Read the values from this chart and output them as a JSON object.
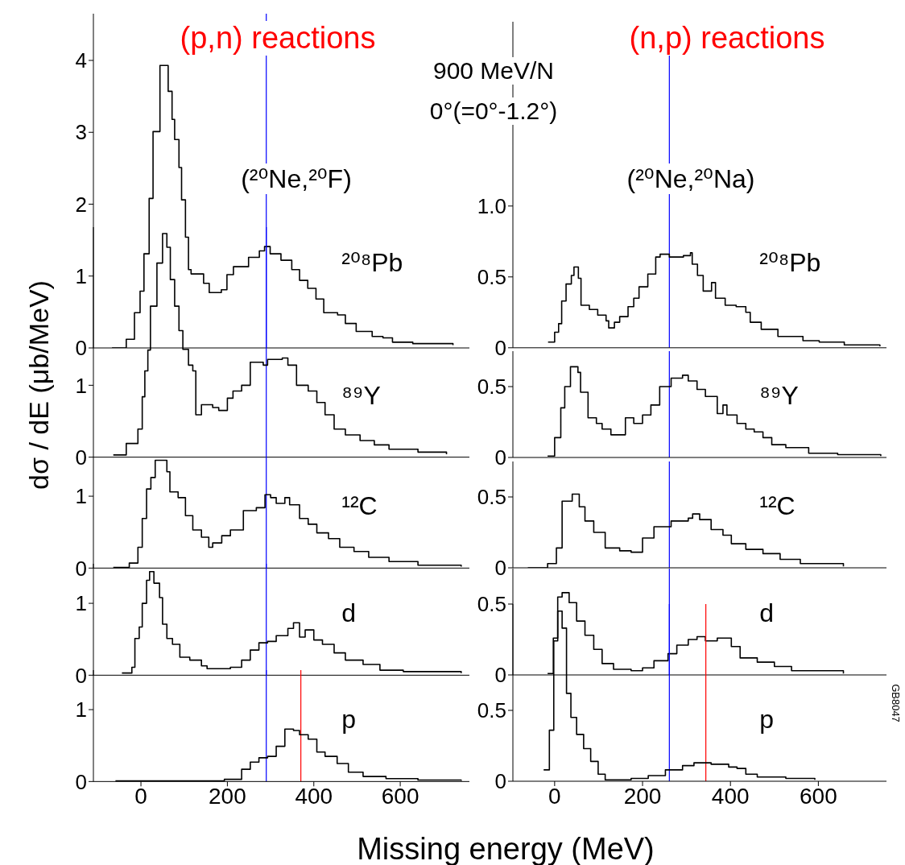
{
  "chart_data": [
    {
      "type": "step",
      "title": "(p,n) reactions",
      "subtitle": "(²⁰Ne,²⁰F)",
      "ylabel": "dσ / dE (μb/MeV)",
      "xlim": [
        -110,
        760
      ],
      "xticks": [
        0,
        200,
        400,
        600
      ],
      "ylim": [
        0,
        4.65
      ],
      "yticks": [
        0,
        1,
        2,
        3,
        4
      ],
      "tick_labels": "y",
      "x": [
        -67,
        -34,
        -15,
        -2,
        7,
        19,
        28,
        44,
        63,
        72,
        78,
        88,
        94,
        103,
        110,
        116,
        145,
        158,
        186,
        199,
        214,
        249,
        274,
        286,
        299,
        324,
        349,
        367,
        386,
        405,
        423,
        455,
        473,
        498,
        523,
        535,
        560,
        582,
        629,
        722
      ],
      "series": [
        {
          "name": "²⁰⁸Pb",
          "color": "#000000",
          "values": [
            0,
            0.12,
            0.49,
            0.79,
            1.31,
            2.08,
            3.01,
            3.93,
            3.57,
            3.18,
            2.9,
            2.51,
            2.06,
            1.54,
            1.09,
            1.03,
            0.9,
            0.77,
            0.81,
            1.02,
            1.13,
            1.26,
            1.35,
            1.41,
            1.31,
            1.22,
            1.09,
            0.94,
            0.83,
            0.68,
            0.49,
            0.46,
            0.34,
            0.23,
            0.23,
            0.16,
            0.14,
            0.08,
            0.06,
            0.04
          ]
        }
      ],
      "ref_lines": [
        {
          "axis": "x",
          "value": 290,
          "color": "#0000ff"
        }
      ]
    },
    {
      "type": "step",
      "title": "(n,p) reactions",
      "subtitle": "(²⁰Ne,²⁰Na)",
      "annotations": [
        "900 MeV/N",
        "0°(=0°-1.2°)"
      ],
      "xlim": [
        -95,
        755
      ],
      "xticks": [
        0,
        200,
        400,
        600
      ],
      "ylim": [
        0,
        2.3
      ],
      "yticks": [
        0,
        0.5,
        {
          "value": 1,
          "label": "1.0"
        }
      ],
      "tick_labels": "y",
      "x": [
        -15,
        0,
        9,
        16,
        26,
        38,
        44,
        54,
        60,
        79,
        98,
        117,
        123,
        136,
        148,
        167,
        180,
        192,
        212,
        230,
        240,
        261,
        293,
        309,
        313,
        325,
        338,
        357,
        366,
        388,
        413,
        435,
        445,
        470,
        508,
        565,
        602,
        659,
        740
      ],
      "series": [
        {
          "name": "²⁰⁸Pb",
          "color": "#000000",
          "values": [
            0.04,
            0.11,
            0.17,
            0.33,
            0.45,
            0.51,
            0.57,
            0.49,
            0.3,
            0.27,
            0.23,
            0.19,
            0.14,
            0.18,
            0.22,
            0.29,
            0.35,
            0.43,
            0.52,
            0.64,
            0.66,
            0.64,
            0.65,
            0.67,
            0.59,
            0.51,
            0.4,
            0.46,
            0.35,
            0.3,
            0.29,
            0.25,
            0.18,
            0.13,
            0.08,
            0.05,
            0.04,
            0.02,
            0.01
          ]
        }
      ],
      "ref_lines": [
        {
          "axis": "x",
          "value": 261,
          "color": "#0000ff"
        }
      ]
    },
    {
      "type": "step",
      "xlim": [
        -110,
        760
      ],
      "xticks": [
        0,
        200,
        400,
        600
      ],
      "ylim": [
        0,
        3.2
      ],
      "yticks": [
        0,
        1
      ],
      "tick_labels": "y",
      "x": [
        -64,
        -34,
        -7,
        3,
        9,
        16,
        22,
        37,
        50,
        60,
        68,
        78,
        88,
        97,
        110,
        120,
        127,
        140,
        166,
        180,
        200,
        213,
        233,
        253,
        283,
        293,
        327,
        340,
        360,
        387,
        407,
        426,
        447,
        473,
        507,
        540,
        574,
        641,
        707
      ],
      "series": [
        {
          "name": "⁸⁹Y",
          "color": "#000000",
          "values": [
            0.03,
            0.19,
            0.39,
            0.84,
            1.2,
            1.49,
            2.1,
            2.7,
            3.11,
            2.92,
            2.47,
            2.1,
            1.76,
            1.5,
            1.28,
            1.2,
            0.59,
            0.73,
            0.69,
            0.65,
            0.82,
            0.92,
            1.0,
            1.32,
            1.28,
            1.36,
            1.38,
            1.28,
            1.0,
            0.92,
            0.76,
            0.59,
            0.39,
            0.31,
            0.23,
            0.17,
            0.11,
            0.07,
            0.04
          ]
        }
      ],
      "ref_lines": [
        {
          "axis": "x",
          "value": 290,
          "color": "#0000ff"
        }
      ]
    },
    {
      "type": "step",
      "xlim": [
        -95,
        755
      ],
      "xticks": [
        0,
        200,
        400,
        600
      ],
      "ylim": [
        0,
        0.75
      ],
      "yticks": [
        0,
        0.5
      ],
      "tick_labels": "y",
      "x": [
        -16,
        0,
        14,
        23,
        36,
        53,
        59,
        76,
        95,
        108,
        128,
        161,
        180,
        200,
        219,
        239,
        265,
        291,
        304,
        324,
        343,
        370,
        383,
        392,
        415,
        435,
        454,
        474,
        494,
        526,
        578,
        644,
        742
      ],
      "series": [
        {
          "name": "⁸⁹Y",
          "color": "#000000",
          "values": [
            0.01,
            0.14,
            0.35,
            0.5,
            0.64,
            0.6,
            0.46,
            0.28,
            0.24,
            0.2,
            0.16,
            0.28,
            0.24,
            0.3,
            0.37,
            0.5,
            0.56,
            0.58,
            0.54,
            0.48,
            0.43,
            0.31,
            0.37,
            0.3,
            0.24,
            0.2,
            0.18,
            0.14,
            0.09,
            0.07,
            0.03,
            0.02,
            0.01
          ]
        }
      ],
      "ref_lines": [
        {
          "axis": "x",
          "value": 261,
          "color": "#0000ff"
        }
      ]
    },
    {
      "type": "step",
      "xlim": [
        -110,
        760
      ],
      "xticks": [
        0,
        200,
        400,
        600
      ],
      "ylim": [
        0,
        1.55
      ],
      "yticks": [
        0,
        1
      ],
      "tick_labels": "y",
      "x": [
        -64,
        -27,
        -7,
        3,
        13,
        23,
        33,
        47,
        60,
        67,
        86,
        103,
        120,
        140,
        157,
        166,
        187,
        207,
        237,
        267,
        287,
        300,
        313,
        333,
        344,
        367,
        387,
        407,
        434,
        460,
        493,
        527,
        574,
        641,
        741
      ],
      "series": [
        {
          "name": "¹²C",
          "color": "#000000",
          "values": [
            0.01,
            0.07,
            0.29,
            0.69,
            1.1,
            1.26,
            1.5,
            1.5,
            1.34,
            1.06,
            0.98,
            0.73,
            0.53,
            0.43,
            0.29,
            0.35,
            0.45,
            0.53,
            0.8,
            0.84,
            1.02,
            0.98,
            0.9,
            0.98,
            0.88,
            0.69,
            0.61,
            0.49,
            0.41,
            0.29,
            0.23,
            0.15,
            0.09,
            0.04,
            0.02
          ]
        }
      ],
      "ref_lines": [
        {
          "axis": "x",
          "value": 290,
          "color": "#0000ff"
        }
      ]
    },
    {
      "type": "step",
      "xlim": [
        -95,
        755
      ],
      "xticks": [
        0,
        200,
        400,
        600
      ],
      "ylim": [
        0,
        0.75
      ],
      "yticks": [
        0,
        0.5
      ],
      "tick_labels": "y",
      "x": [
        -61,
        -16,
        4,
        17,
        40,
        56,
        69,
        89,
        115,
        148,
        174,
        200,
        226,
        265,
        304,
        314,
        330,
        356,
        383,
        402,
        435,
        474,
        513,
        559,
        657
      ],
      "series": [
        {
          "name": "¹²C",
          "color": "#000000",
          "values": [
            0,
            0.03,
            0.14,
            0.47,
            0.52,
            0.43,
            0.33,
            0.25,
            0.14,
            0.12,
            0.11,
            0.21,
            0.29,
            0.33,
            0.35,
            0.38,
            0.34,
            0.27,
            0.23,
            0.17,
            0.13,
            0.1,
            0.06,
            0.03,
            0.01
          ]
        }
      ],
      "ref_lines": [
        {
          "axis": "x",
          "value": 261,
          "color": "#0000ff"
        }
      ]
    },
    {
      "type": "step",
      "xlim": [
        -110,
        760
      ],
      "xticks": [
        0,
        200,
        400,
        600
      ],
      "ylim": [
        0,
        1.55
      ],
      "yticks": [
        0,
        1
      ],
      "tick_labels": "y",
      "x": [
        -44,
        -21,
        -14,
        -4,
        3,
        13,
        20,
        30,
        43,
        50,
        60,
        73,
        90,
        113,
        140,
        153,
        207,
        233,
        253,
        273,
        293,
        313,
        340,
        353,
        367,
        380,
        400,
        420,
        447,
        473,
        514,
        553,
        607,
        741
      ],
      "series": [
        {
          "name": "d",
          "color": "#000000",
          "values": [
            0.03,
            0.11,
            0.51,
            0.67,
            1.0,
            1.32,
            1.44,
            1.28,
            1.08,
            0.71,
            0.51,
            0.43,
            0.25,
            0.21,
            0.13,
            0.09,
            0.11,
            0.21,
            0.35,
            0.45,
            0.47,
            0.55,
            0.65,
            0.73,
            0.53,
            0.63,
            0.49,
            0.43,
            0.31,
            0.21,
            0.15,
            0.07,
            0.05,
            0.03
          ]
        }
      ],
      "ref_lines": [
        {
          "axis": "x",
          "value": 290,
          "color": "#0000ff"
        }
      ]
    },
    {
      "type": "step",
      "xlim": [
        -95,
        755
      ],
      "xticks": [
        0,
        200,
        400,
        600
      ],
      "ylim": [
        0,
        0.75
      ],
      "yticks": [
        0,
        0.5
      ],
      "tick_labels": "y",
      "x": [
        -16,
        -3,
        7,
        17,
        33,
        50,
        69,
        89,
        108,
        134,
        174,
        200,
        226,
        258,
        278,
        304,
        324,
        343,
        370,
        389,
        402,
        422,
        461,
        500,
        539,
        657
      ],
      "series": [
        {
          "name": "d",
          "color": "#000000",
          "values": [
            0.01,
            0.26,
            0.55,
            0.58,
            0.51,
            0.38,
            0.28,
            0.18,
            0.08,
            0.04,
            0.03,
            0.05,
            0.1,
            0.15,
            0.21,
            0.25,
            0.27,
            0.24,
            0.26,
            0.26,
            0.2,
            0.12,
            0.09,
            0.06,
            0.03,
            0.01
          ]
        }
      ],
      "ref_lines": [
        {
          "axis": "x",
          "value": 261,
          "color": "#0000ff"
        }
      ]
    },
    {
      "type": "step",
      "xlabel": "Missing energy (MeV)",
      "xlim": [
        -110,
        760
      ],
      "xticks": [
        0,
        200,
        400,
        600
      ],
      "ylim": [
        0,
        1.55
      ],
      "yticks": [
        0,
        1
      ],
      "x": [
        -59,
        140,
        193,
        233,
        253,
        273,
        293,
        313,
        333,
        353,
        367,
        387,
        407,
        426,
        454,
        480,
        514,
        567,
        641,
        741
      ],
      "series": [
        {
          "name": "p",
          "color": "#000000",
          "values": [
            0.01,
            0.01,
            0.03,
            0.17,
            0.27,
            0.33,
            0.35,
            0.49,
            0.73,
            0.71,
            0.65,
            0.59,
            0.41,
            0.35,
            0.25,
            0.13,
            0.07,
            0.04,
            0.02,
            0.01
          ]
        }
      ],
      "ref_lines": [
        {
          "axis": "x",
          "value": 290,
          "color": "#0000ff"
        },
        {
          "axis": "x",
          "value": 370,
          "color": "#ff0000"
        }
      ]
    },
    {
      "type": "step",
      "annotations": [
        "GB8047"
      ],
      "xlim": [
        -95,
        755
      ],
      "xticks": [
        0,
        200,
        400,
        600
      ],
      "ylim": [
        0,
        1.25
      ],
      "yticks": [
        0,
        0.5
      ],
      "x": [
        -25,
        -12,
        -2,
        7,
        17,
        27,
        37,
        50,
        66,
        82,
        99,
        115,
        174,
        213,
        252,
        291,
        317,
        356,
        396,
        415,
        435,
        461,
        526,
        592
      ],
      "series": [
        {
          "name": "p",
          "color": "#000000",
          "values": [
            0.08,
            0.36,
            0.99,
            1.2,
            1.08,
            0.62,
            0.45,
            0.33,
            0.23,
            0.14,
            0.05,
            0.01,
            0.02,
            0.04,
            0.08,
            0.11,
            0.13,
            0.12,
            0.1,
            0.09,
            0.05,
            0.03,
            0.02,
            0.01
          ]
        }
      ],
      "ref_lines": [
        {
          "axis": "x",
          "value": 261,
          "color": "#0000ff"
        },
        {
          "axis": "x",
          "value": 344,
          "color": "#ff0000"
        }
      ]
    }
  ]
}
